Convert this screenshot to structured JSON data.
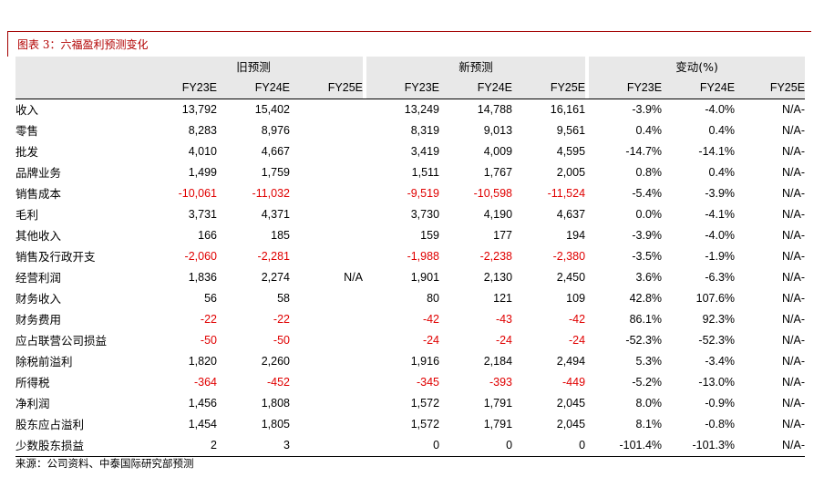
{
  "caption": "图表 3：六福盈利预测变化",
  "groups": {
    "old": "旧预测",
    "new": "新预测",
    "change": "变动(%)"
  },
  "columns": [
    "FY23E",
    "FY24E",
    "FY25E",
    "FY23E",
    "FY24E",
    "FY25E",
    "FY23E",
    "FY24E",
    "FY25E"
  ],
  "rows": [
    {
      "label": "收入",
      "cells": [
        [
          "13,792",
          0
        ],
        [
          "15,402",
          0
        ],
        [
          "",
          0
        ],
        [
          "13,249",
          0
        ],
        [
          "14,788",
          0
        ],
        [
          "16,161",
          0
        ],
        [
          "-3.9%",
          0
        ],
        [
          "-4.0%",
          0
        ],
        [
          "N/A-",
          0
        ]
      ]
    },
    {
      "label": "零售",
      "cells": [
        [
          "8,283",
          0
        ],
        [
          "8,976",
          0
        ],
        [
          "",
          0
        ],
        [
          "8,319",
          0
        ],
        [
          "9,013",
          0
        ],
        [
          "9,561",
          0
        ],
        [
          "0.4%",
          0
        ],
        [
          "0.4%",
          0
        ],
        [
          "N/A-",
          0
        ]
      ]
    },
    {
      "label": "批发",
      "cells": [
        [
          "4,010",
          0
        ],
        [
          "4,667",
          0
        ],
        [
          "",
          0
        ],
        [
          "3,419",
          0
        ],
        [
          "4,009",
          0
        ],
        [
          "4,595",
          0
        ],
        [
          "-14.7%",
          0
        ],
        [
          "-14.1%",
          0
        ],
        [
          "N/A-",
          0
        ]
      ]
    },
    {
      "label": "品牌业务",
      "cells": [
        [
          "1,499",
          0
        ],
        [
          "1,759",
          0
        ],
        [
          "",
          0
        ],
        [
          "1,511",
          0
        ],
        [
          "1,767",
          0
        ],
        [
          "2,005",
          0
        ],
        [
          "0.8%",
          0
        ],
        [
          "0.4%",
          0
        ],
        [
          "N/A-",
          0
        ]
      ]
    },
    {
      "label": "销售成本",
      "cells": [
        [
          "-10,061",
          1
        ],
        [
          "-11,032",
          1
        ],
        [
          "",
          0
        ],
        [
          "-9,519",
          1
        ],
        [
          "-10,598",
          1
        ],
        [
          "-11,524",
          1
        ],
        [
          "-5.4%",
          0
        ],
        [
          "-3.9%",
          0
        ],
        [
          "N/A-",
          0
        ]
      ]
    },
    {
      "label": "毛利",
      "cells": [
        [
          "3,731",
          0
        ],
        [
          "4,371",
          0
        ],
        [
          "",
          0
        ],
        [
          "3,730",
          0
        ],
        [
          "4,190",
          0
        ],
        [
          "4,637",
          0
        ],
        [
          "0.0%",
          0
        ],
        [
          "-4.1%",
          0
        ],
        [
          "N/A-",
          0
        ]
      ]
    },
    {
      "label": "其他收入",
      "cells": [
        [
          "166",
          0
        ],
        [
          "185",
          0
        ],
        [
          "",
          0
        ],
        [
          "159",
          0
        ],
        [
          "177",
          0
        ],
        [
          "194",
          0
        ],
        [
          "-3.9%",
          0
        ],
        [
          "-4.0%",
          0
        ],
        [
          "N/A-",
          0
        ]
      ]
    },
    {
      "label": "销售及行政开支",
      "cells": [
        [
          "-2,060",
          1
        ],
        [
          "-2,281",
          1
        ],
        [
          "",
          0
        ],
        [
          "-1,988",
          1
        ],
        [
          "-2,238",
          1
        ],
        [
          "-2,380",
          1
        ],
        [
          "-3.5%",
          0
        ],
        [
          "-1.9%",
          0
        ],
        [
          "N/A-",
          0
        ]
      ]
    },
    {
      "label": "经营利润",
      "cells": [
        [
          "1,836",
          0
        ],
        [
          "2,274",
          0
        ],
        [
          "N/A",
          0
        ],
        [
          "1,901",
          0
        ],
        [
          "2,130",
          0
        ],
        [
          "2,450",
          0
        ],
        [
          "3.6%",
          0
        ],
        [
          "-6.3%",
          0
        ],
        [
          "N/A-",
          0
        ]
      ]
    },
    {
      "label": "财务收入",
      "cells": [
        [
          "56",
          0
        ],
        [
          "58",
          0
        ],
        [
          "",
          0
        ],
        [
          "80",
          0
        ],
        [
          "121",
          0
        ],
        [
          "109",
          0
        ],
        [
          "42.8%",
          0
        ],
        [
          "107.6%",
          0
        ],
        [
          "N/A-",
          0
        ]
      ]
    },
    {
      "label": "财务费用",
      "cells": [
        [
          "-22",
          1
        ],
        [
          "-22",
          1
        ],
        [
          "",
          0
        ],
        [
          "-42",
          1
        ],
        [
          "-43",
          1
        ],
        [
          "-42",
          1
        ],
        [
          "86.1%",
          0
        ],
        [
          "92.3%",
          0
        ],
        [
          "N/A-",
          0
        ]
      ]
    },
    {
      "label": "应占联营公司损益",
      "cells": [
        [
          "-50",
          1
        ],
        [
          "-50",
          1
        ],
        [
          "",
          0
        ],
        [
          "-24",
          1
        ],
        [
          "-24",
          1
        ],
        [
          "-24",
          1
        ],
        [
          "-52.3%",
          0
        ],
        [
          "-52.3%",
          0
        ],
        [
          "N/A-",
          0
        ]
      ]
    },
    {
      "label": "除税前溢利",
      "cells": [
        [
          "1,820",
          0
        ],
        [
          "2,260",
          0
        ],
        [
          "",
          0
        ],
        [
          "1,916",
          0
        ],
        [
          "2,184",
          0
        ],
        [
          "2,494",
          0
        ],
        [
          "5.3%",
          0
        ],
        [
          "-3.4%",
          0
        ],
        [
          "N/A-",
          0
        ]
      ]
    },
    {
      "label": "所得税",
      "cells": [
        [
          "-364",
          1
        ],
        [
          "-452",
          1
        ],
        [
          "",
          0
        ],
        [
          "-345",
          1
        ],
        [
          "-393",
          1
        ],
        [
          "-449",
          1
        ],
        [
          "-5.2%",
          0
        ],
        [
          "-13.0%",
          0
        ],
        [
          "N/A-",
          0
        ]
      ]
    },
    {
      "label": "净利润",
      "cells": [
        [
          "1,456",
          0
        ],
        [
          "1,808",
          0
        ],
        [
          "",
          0
        ],
        [
          "1,572",
          0
        ],
        [
          "1,791",
          0
        ],
        [
          "2,045",
          0
        ],
        [
          "8.0%",
          0
        ],
        [
          "-0.9%",
          0
        ],
        [
          "N/A-",
          0
        ]
      ]
    },
    {
      "label": "股东应占溢利",
      "cells": [
        [
          "1,454",
          0
        ],
        [
          "1,805",
          0
        ],
        [
          "",
          0
        ],
        [
          "1,572",
          0
        ],
        [
          "1,791",
          0
        ],
        [
          "2,045",
          0
        ],
        [
          "8.1%",
          0
        ],
        [
          "-0.8%",
          0
        ],
        [
          "N/A-",
          0
        ]
      ]
    },
    {
      "label": "少数股东损益",
      "cells": [
        [
          "2",
          0
        ],
        [
          "3",
          0
        ],
        [
          "",
          0
        ],
        [
          "0",
          0
        ],
        [
          "0",
          0
        ],
        [
          "0",
          0
        ],
        [
          "-101.4%",
          0
        ],
        [
          "-101.3%",
          0
        ],
        [
          "N/A-",
          0
        ]
      ]
    }
  ],
  "source": "来源：公司资料、中泰国际研究部预测",
  "colors": {
    "caption": "#b20000",
    "negative": "#e00000",
    "header_bg": "#e8e8e8"
  }
}
